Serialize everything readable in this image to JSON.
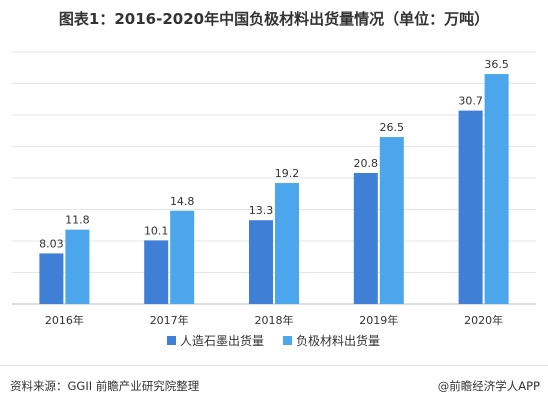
{
  "title": "图表1：2016-2020年中国负极材料出货量情况（单位：万吨）",
  "source": "资料来源：GGII 前瞻产业研究院整理",
  "credit": "@前瞻经济学人APP",
  "chart_data": {
    "type": "bar",
    "categories": [
      "2016年",
      "2017年",
      "2018年",
      "2019年",
      "2020年"
    ],
    "series": [
      {
        "name": "人造石墨出货量",
        "values": [
          8.03,
          10.1,
          13.3,
          20.8,
          30.7
        ],
        "labels": [
          "8.03",
          "10.1",
          "13.3",
          "20.8",
          "30.7"
        ],
        "color": "#3f7fd6"
      },
      {
        "name": "负极材料出货量",
        "values": [
          11.8,
          14.8,
          19.2,
          26.5,
          36.5
        ],
        "labels": [
          "11.8",
          "14.8",
          "19.2",
          "26.5",
          "36.5"
        ],
        "color": "#4ba6ec"
      }
    ],
    "ylim": [
      0,
      40
    ],
    "grid": true,
    "legend": "bottom-center",
    "xlabel": "",
    "ylabel": ""
  }
}
